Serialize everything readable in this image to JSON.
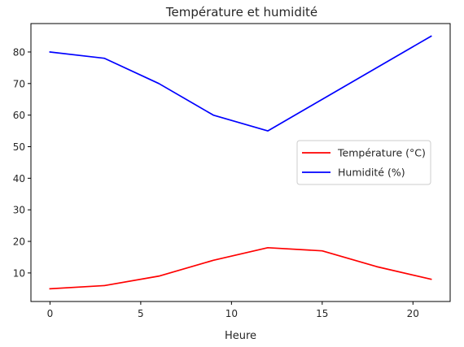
{
  "chart_data": {
    "type": "line",
    "title": "Température et humidité",
    "xlabel": "Heure",
    "ylabel": "",
    "xlim": [
      -1.05,
      22.05
    ],
    "ylim": [
      0.96,
      89.0
    ],
    "xticks": [
      0,
      5,
      10,
      15,
      20
    ],
    "yticks": [
      10,
      20,
      30,
      40,
      50,
      60,
      70,
      80
    ],
    "grid": false,
    "legend_position": "center-right",
    "series": [
      {
        "name": "Température (°C)",
        "color": "#ff0000",
        "x": [
          0,
          3,
          6,
          9,
          12,
          15,
          18,
          21
        ],
        "y": [
          5,
          6,
          9,
          14,
          18,
          17,
          12,
          8
        ]
      },
      {
        "name": "Humidité (%)",
        "color": "#0000ff",
        "x": [
          0,
          3,
          6,
          9,
          12,
          15,
          18,
          21
        ],
        "y": [
          80,
          78,
          70,
          60,
          55,
          65,
          75,
          85
        ]
      }
    ]
  }
}
